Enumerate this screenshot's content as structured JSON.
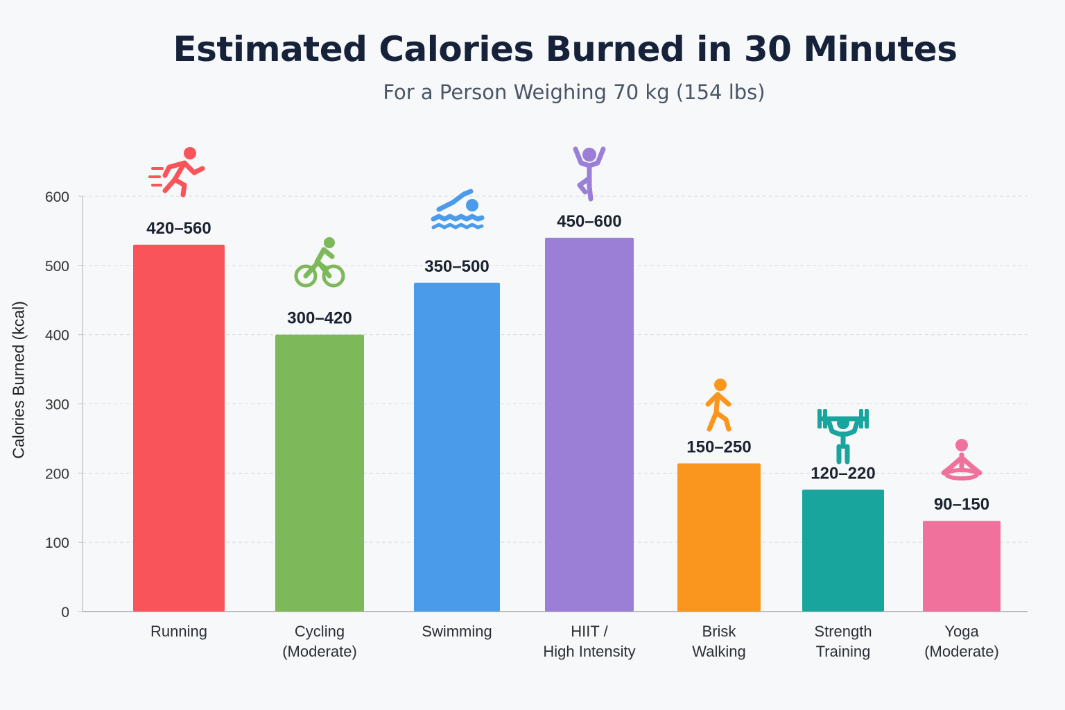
{
  "chart_data": {
    "type": "bar",
    "title": "Estimated Calories Burned in 30 Minutes",
    "subtitle": "For a Person Weighing 70 kg (154 lbs)",
    "xlabel": "",
    "ylabel": "Calories Burned (kcal)",
    "ylim": [
      0,
      600
    ],
    "yticks": [
      "0",
      "100",
      "200",
      "300",
      "400",
      "500",
      "600"
    ],
    "grid": true,
    "bars": [
      {
        "category": [
          "Running"
        ],
        "range_label": "420–560",
        "low": 420,
        "high": 560,
        "value": 530,
        "color": "#f9545a",
        "icon": "running-icon"
      },
      {
        "category": [
          "Cycling",
          "(Moderate)"
        ],
        "range_label": "300–420",
        "low": 300,
        "high": 420,
        "value": 400,
        "color": "#7db85a",
        "icon": "cycling-icon"
      },
      {
        "category": [
          "Swimming"
        ],
        "range_label": "350–500",
        "low": 350,
        "high": 500,
        "value": 475,
        "color": "#4a9ceb",
        "icon": "swimming-icon"
      },
      {
        "category": [
          "HIIT /",
          "High Intensity"
        ],
        "range_label": "450–600",
        "low": 450,
        "high": 600,
        "value": 540,
        "color": "#9b7fd6",
        "icon": "jumping-person-icon"
      },
      {
        "category": [
          "Brisk",
          "Walking"
        ],
        "range_label": "150–250",
        "low": 150,
        "high": 250,
        "value": 214,
        "color": "#fa961e",
        "icon": "walking-icon"
      },
      {
        "category": [
          "Strength",
          "Training"
        ],
        "range_label": "120–220",
        "low": 120,
        "high": 220,
        "value": 176,
        "color": "#17a59e",
        "icon": "weightlifting-icon"
      },
      {
        "category": [
          "Yoga",
          "(Moderate)"
        ],
        "range_label": "90–150",
        "low": 90,
        "high": 150,
        "value": 131,
        "color": "#f0719c",
        "icon": "yoga-icon"
      }
    ]
  }
}
